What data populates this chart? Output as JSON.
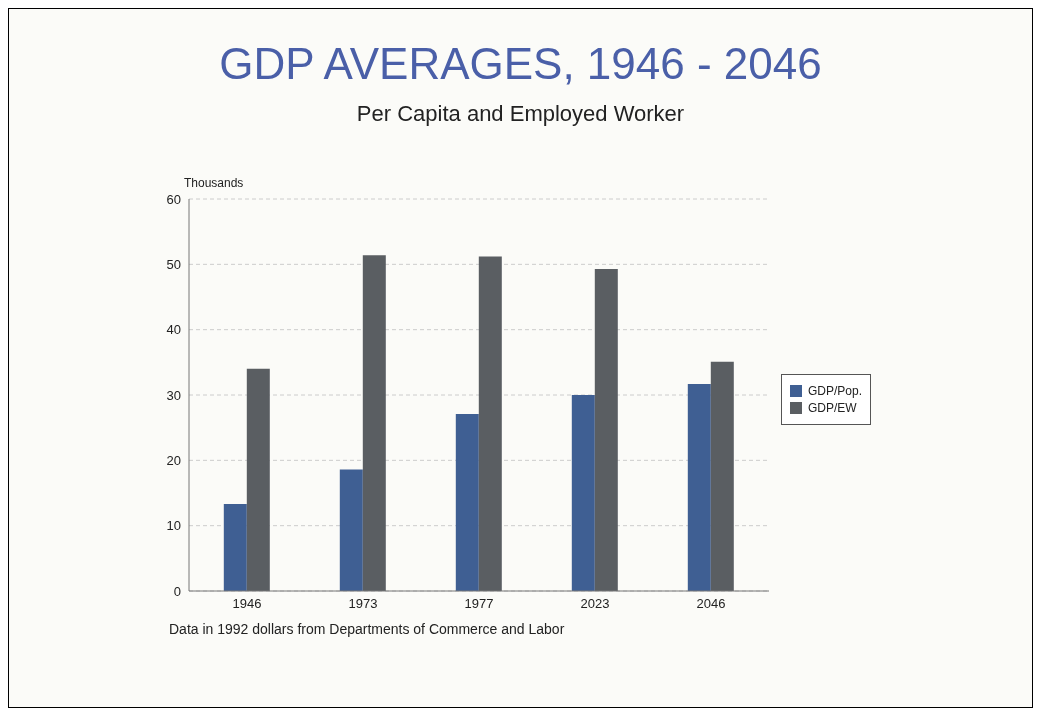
{
  "chart_data": {
    "type": "bar",
    "title": "GDP AVERAGES, 1946 - 2046",
    "subtitle": "Per Capita and Employed Worker",
    "ylabel": "Thousands",
    "annotations": [
      "Data in 1992 dollars from Departments of Commerce and Labor"
    ],
    "categories": [
      "1946",
      "1973",
      "1977",
      "2023",
      "2046"
    ],
    "series": [
      {
        "name": "GDP/Pop.",
        "color": "#3f5f93",
        "values": [
          13.3,
          18.6,
          27.1,
          30.0,
          31.7
        ]
      },
      {
        "name": "GDP/EW",
        "color": "#5a5e62",
        "values": [
          34.0,
          51.4,
          51.2,
          49.3,
          35.1
        ]
      }
    ],
    "ylim": [
      0,
      60
    ],
    "yticks": [
      0,
      10,
      20,
      30,
      40,
      50,
      60
    ],
    "grid": "y",
    "legend": "right"
  }
}
